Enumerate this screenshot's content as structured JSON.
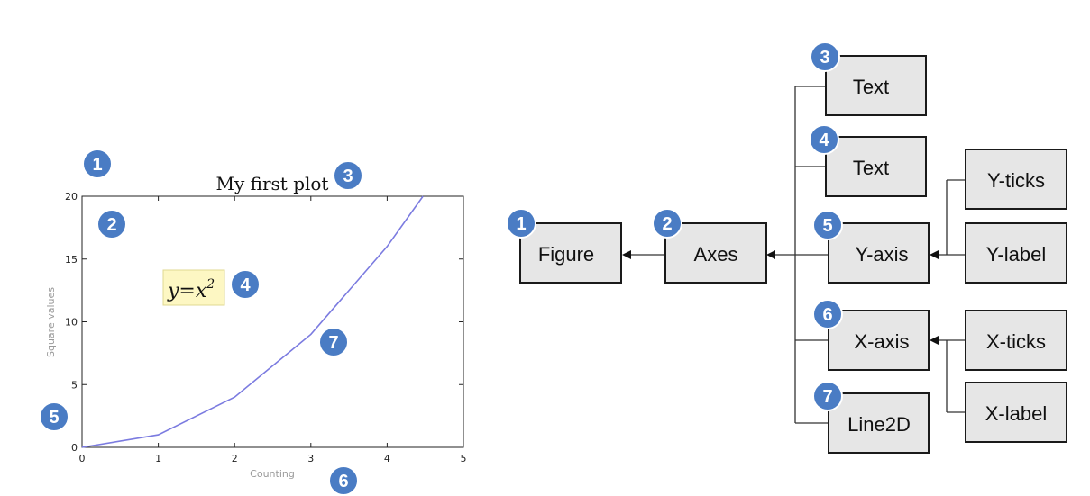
{
  "figure": {
    "title": "My first plot",
    "formula": "y=x",
    "formula_exp": "2",
    "badges": [
      "1",
      "2",
      "3",
      "4",
      "5",
      "6",
      "7"
    ]
  },
  "chart_data": {
    "type": "line",
    "title": "My first plot",
    "xlabel": "Counting",
    "ylabel": "Square values",
    "x": [
      0,
      1,
      2,
      3,
      4,
      4.47
    ],
    "y": [
      0,
      1,
      4,
      9,
      16,
      20
    ],
    "xlim": [
      0,
      5
    ],
    "ylim": [
      0,
      20
    ],
    "xticks": [
      "0",
      "1",
      "2",
      "3",
      "4",
      "5"
    ],
    "yticks": [
      "0",
      "5",
      "10",
      "15",
      "20"
    ],
    "line_color": "#7b7be0",
    "annotation": "y=x²",
    "grid": false
  },
  "diagram": {
    "nodes": {
      "figure": {
        "label": "Figure",
        "badge": "1"
      },
      "axes": {
        "label": "Axes",
        "badge": "2"
      },
      "text3": {
        "label": "Text",
        "badge": "3"
      },
      "text4": {
        "label": "Text",
        "badge": "4"
      },
      "yaxis": {
        "label": "Y-axis",
        "badge": "5"
      },
      "xaxis": {
        "label": "X-axis",
        "badge": "6"
      },
      "line2d": {
        "label": "Line2D",
        "badge": "7"
      },
      "yticks": {
        "label": "Y-ticks"
      },
      "ylabel": {
        "label": "Y-label"
      },
      "xticks": {
        "label": "X-ticks"
      },
      "xlabel": {
        "label": "X-label"
      }
    },
    "badge_color": "#4a7cc4",
    "box_fill": "#e6e6e6"
  }
}
